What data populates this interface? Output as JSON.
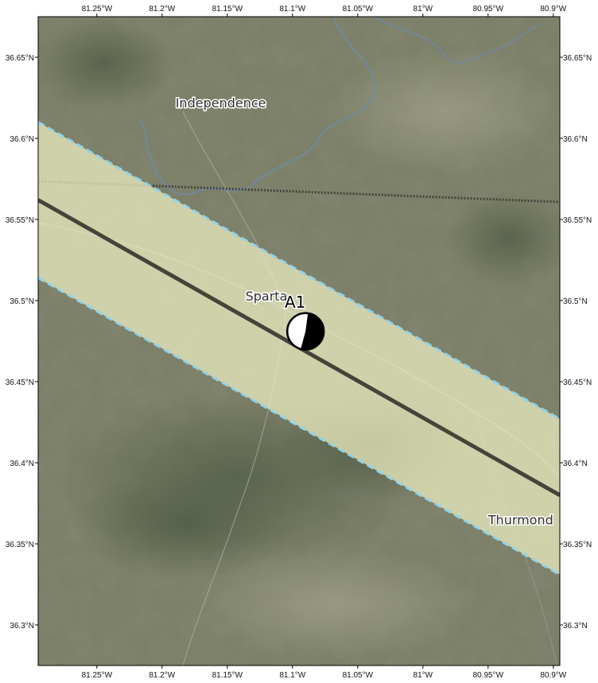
{
  "map": {
    "lon_range": [
      -81.295,
      -80.895
    ],
    "lat_range": [
      36.275,
      36.675
    ],
    "lon_ticks": [
      {
        "value": -81.25,
        "label": "81.25°W"
      },
      {
        "value": -81.2,
        "label": "81.2°W"
      },
      {
        "value": -81.15,
        "label": "81.15°W"
      },
      {
        "value": -81.1,
        "label": "81.1°W"
      },
      {
        "value": -81.05,
        "label": "81.05°W"
      },
      {
        "value": -81.0,
        "label": "81°W"
      },
      {
        "value": -80.95,
        "label": "80.95°W"
      },
      {
        "value": -80.9,
        "label": "80.9°W"
      }
    ],
    "lat_ticks": [
      {
        "value": 36.65,
        "label": "36.65°N"
      },
      {
        "value": 36.6,
        "label": "36.6°N"
      },
      {
        "value": 36.55,
        "label": "36.55°N"
      },
      {
        "value": 36.5,
        "label": "36.5°N"
      },
      {
        "value": 36.45,
        "label": "36.45°N"
      },
      {
        "value": 36.4,
        "label": "36.4°N"
      },
      {
        "value": 36.35,
        "label": "36.35°N"
      },
      {
        "value": 36.3,
        "label": "36.3°N"
      }
    ],
    "places": [
      {
        "name": "Independence",
        "lon": -81.155,
        "lat": 36.622
      },
      {
        "name": "Sparta",
        "lon": -81.12,
        "lat": 36.503
      },
      {
        "name": "Thurmond",
        "lon": -80.925,
        "lat": 36.365
      }
    ],
    "event": {
      "label": "A1",
      "lon": -81.09,
      "lat": 36.481
    },
    "fault_trace": {
      "start": [
        -81.295,
        36.562
      ],
      "end": [
        -80.895,
        36.38
      ]
    },
    "band_edges": {
      "north": {
        "start": [
          -81.295,
          36.61
        ],
        "end": [
          -80.895,
          36.427
        ]
      },
      "south": {
        "start": [
          -81.295,
          36.514
        ],
        "end": [
          -80.895,
          36.331
        ]
      }
    },
    "colors": {
      "band_fill": "#eef0c4",
      "band_edge": "#8fd3ea",
      "fault_trace": "#2b2b26",
      "terrain": "#7d8068"
    }
  }
}
